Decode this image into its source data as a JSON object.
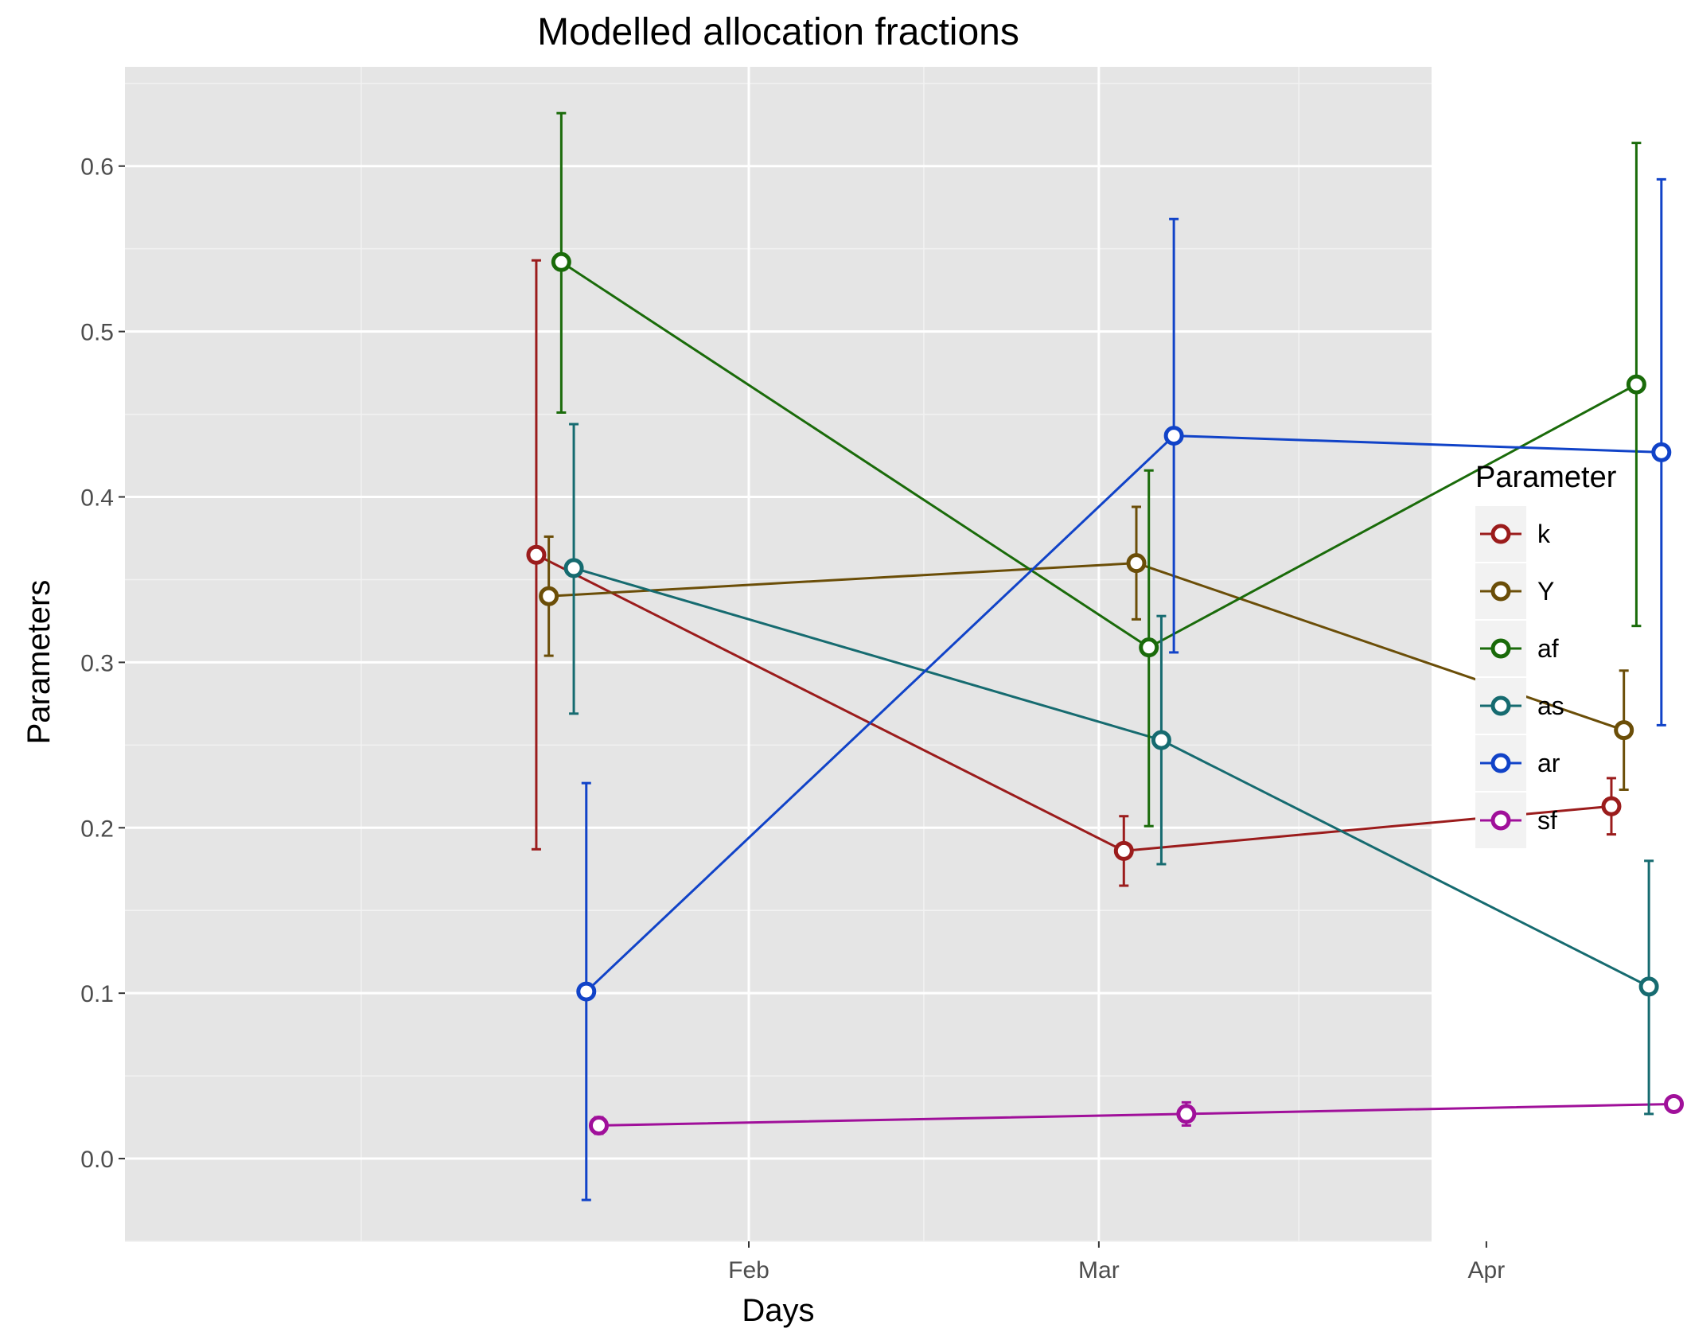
{
  "chart_data": {
    "type": "line",
    "title": "Modelled allocation fractions",
    "xlabel": "Days",
    "ylabel": "Parameters",
    "x_ticks": [
      "Feb",
      "Mar",
      "Apr"
    ],
    "y_ticks": [
      "0.0",
      "0.1",
      "0.2",
      "0.3",
      "0.4",
      "0.5",
      "0.6"
    ],
    "ylim": [
      -0.05,
      0.66
    ],
    "legend_title": "Parameter",
    "legend_position": "right",
    "grid": true,
    "series": [
      {
        "name": "k",
        "color": "#9b1c1c",
        "points": [
          {
            "x": "Jan 15",
            "y": 0.365,
            "lo": 0.187,
            "hi": 0.543
          },
          {
            "x": "Mar 3",
            "y": 0.186,
            "lo": 0.165,
            "hi": 0.207
          },
          {
            "x": "Apr 11",
            "y": 0.213,
            "lo": 0.196,
            "hi": 0.23
          }
        ]
      },
      {
        "name": "Y",
        "color": "#6b4e08",
        "points": [
          {
            "x": "Jan 16",
            "y": 0.34,
            "lo": 0.304,
            "hi": 0.376
          },
          {
            "x": "Mar 4",
            "y": 0.36,
            "lo": 0.326,
            "hi": 0.394
          },
          {
            "x": "Apr 12",
            "y": 0.259,
            "lo": 0.223,
            "hi": 0.295
          }
        ]
      },
      {
        "name": "af",
        "color": "#1a6b0a",
        "points": [
          {
            "x": "Jan 17",
            "y": 0.542,
            "lo": 0.451,
            "hi": 0.632
          },
          {
            "x": "Mar 5",
            "y": 0.309,
            "lo": 0.201,
            "hi": 0.416
          },
          {
            "x": "Apr 13",
            "y": 0.468,
            "lo": 0.322,
            "hi": 0.614
          }
        ]
      },
      {
        "name": "as",
        "color": "#166b70",
        "points": [
          {
            "x": "Jan 18",
            "y": 0.357,
            "lo": 0.269,
            "hi": 0.444
          },
          {
            "x": "Mar 6",
            "y": 0.253,
            "lo": 0.178,
            "hi": 0.328
          },
          {
            "x": "Apr 14",
            "y": 0.104,
            "lo": 0.027,
            "hi": 0.18
          }
        ]
      },
      {
        "name": "ar",
        "color": "#1143c8",
        "points": [
          {
            "x": "Jan 19",
            "y": 0.101,
            "lo": -0.025,
            "hi": 0.227
          },
          {
            "x": "Mar 7",
            "y": 0.437,
            "lo": 0.306,
            "hi": 0.568
          },
          {
            "x": "Apr 15",
            "y": 0.427,
            "lo": 0.262,
            "hi": 0.592
          }
        ]
      },
      {
        "name": "sf",
        "color": "#a0109a",
        "points": [
          {
            "x": "Jan 20",
            "y": 0.02,
            "lo": 0.015,
            "hi": 0.025
          },
          {
            "x": "Mar 8",
            "y": 0.027,
            "lo": 0.02,
            "hi": 0.034
          },
          {
            "x": "Apr 16",
            "y": 0.033,
            "lo": 0.029,
            "hi": 0.037
          }
        ]
      }
    ]
  }
}
